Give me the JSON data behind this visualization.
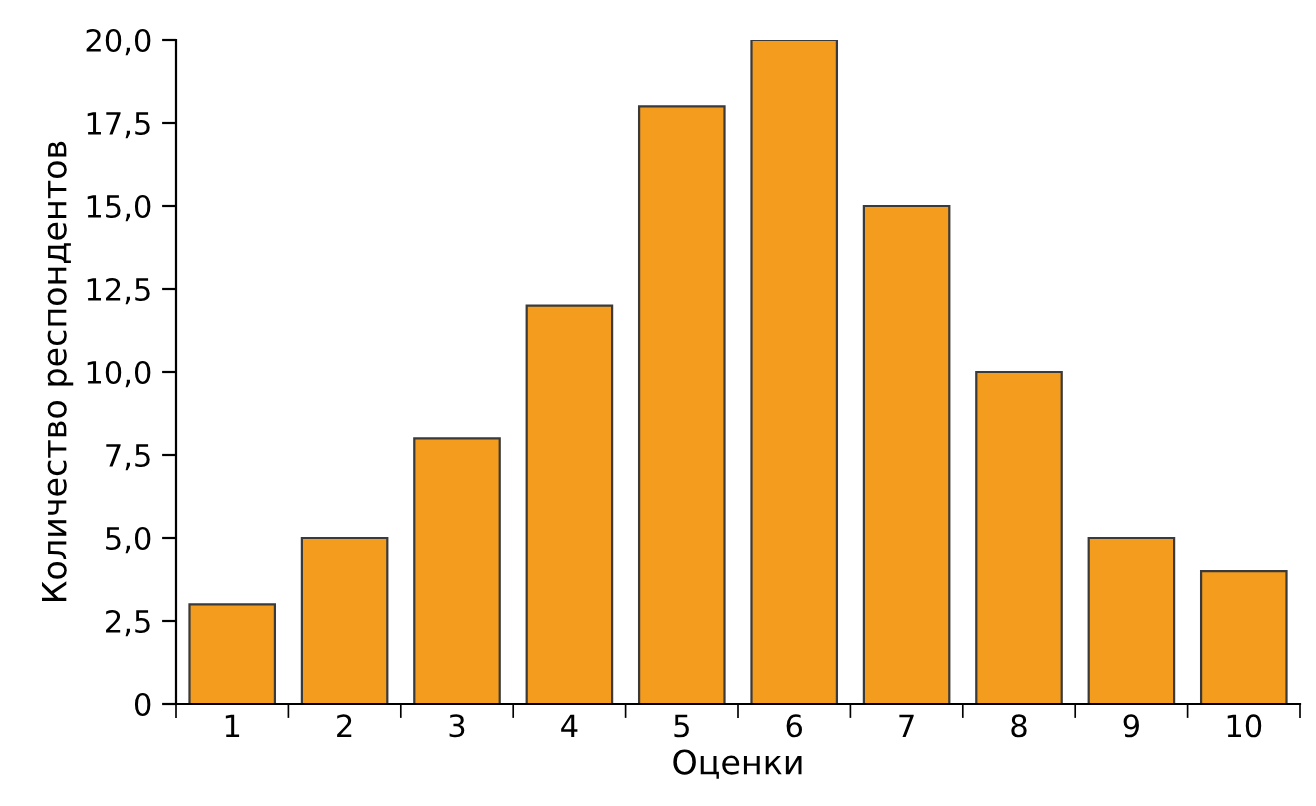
{
  "chart_data": {
    "type": "bar",
    "xlabel": "Оценки",
    "ylabel": "Количество респондентов",
    "categories": [
      "1",
      "2",
      "3",
      "4",
      "5",
      "6",
      "7",
      "8",
      "9",
      "10"
    ],
    "values": [
      3,
      5,
      8,
      12,
      18,
      20,
      15,
      10,
      5,
      4
    ],
    "color": "#f39c1e",
    "ylim": [
      0,
      20
    ],
    "yticks": [
      0,
      {
        "value": 2.5,
        "label": "2,5"
      },
      {
        "value": 5,
        "label": "5,0"
      },
      {
        "value": 7.5,
        "label": "7,5"
      },
      {
        "value": 10,
        "label": "10,0"
      },
      {
        "value": 12.5,
        "label": "12,5"
      },
      {
        "value": 15,
        "label": "15,0"
      },
      {
        "value": 17.5,
        "label": "17,5"
      },
      {
        "value": 20,
        "label": "20,0"
      }
    ],
    "grid": false,
    "legend": false
  }
}
